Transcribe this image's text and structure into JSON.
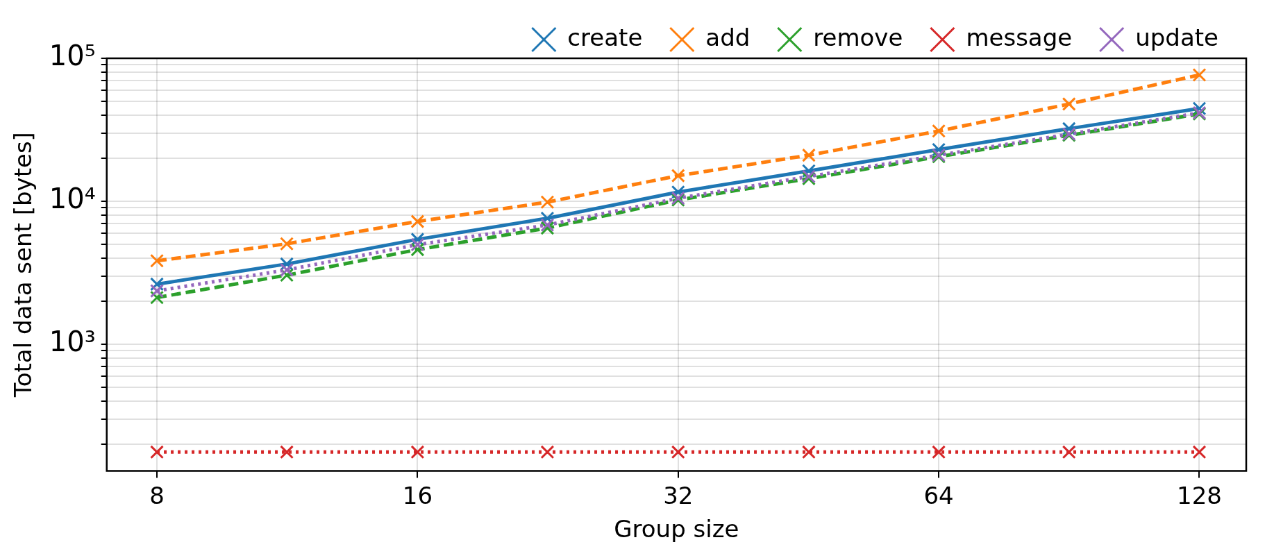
{
  "chart_data": {
    "type": "line",
    "xlabel": "Group size",
    "ylabel": "Total data sent [bytes]",
    "x": [
      8,
      11.3,
      16,
      22.6,
      32,
      45.3,
      64,
      90.5,
      128
    ],
    "series": [
      {
        "name": "create",
        "color": "#1f77b4",
        "line_style": "solid",
        "values": [
          2630,
          3640,
          5410,
          7600,
          11600,
          16300,
          23000,
          32200,
          44600
        ]
      },
      {
        "name": "add",
        "color": "#ff7f0e",
        "line_style": "dashed",
        "values": [
          3830,
          5040,
          7220,
          9860,
          15100,
          21000,
          31000,
          47900,
          76500
        ]
      },
      {
        "name": "remove",
        "color": "#2ca02c",
        "line_style": "dashed",
        "values": [
          2120,
          3040,
          4590,
          6490,
          10200,
          14400,
          20500,
          28900,
          40800
        ]
      },
      {
        "name": "message",
        "color": "#d62728",
        "line_style": "dotted",
        "values": [
          176,
          176,
          176,
          176,
          176,
          176,
          176,
          176,
          176
        ]
      },
      {
        "name": "update",
        "color": "#9467bd",
        "line_style": "dotted",
        "values": [
          2360,
          3310,
          4970,
          6820,
          10500,
          14900,
          21000,
          29500,
          41500
        ]
      }
    ],
    "log": "xy",
    "xlim": [
      7,
      145
    ],
    "ylim": [
      130,
      100000
    ],
    "xticks": [
      8,
      16,
      32,
      64,
      128
    ],
    "yticks": [
      {
        "value": 200,
        "label": null
      },
      {
        "value": 300,
        "label": null
      },
      {
        "value": 400,
        "label": null
      },
      {
        "value": 500,
        "label": null
      },
      {
        "value": 600,
        "label": null
      },
      {
        "value": 700,
        "label": null
      },
      {
        "value": 800,
        "label": null
      },
      {
        "value": 900,
        "label": null
      },
      {
        "value": 1000,
        "label": "10³"
      },
      {
        "value": 2000,
        "label": null
      },
      {
        "value": 3000,
        "label": null
      },
      {
        "value": 4000,
        "label": null
      },
      {
        "value": 5000,
        "label": null
      },
      {
        "value": 6000,
        "label": null
      },
      {
        "value": 7000,
        "label": null
      },
      {
        "value": 8000,
        "label": null
      },
      {
        "value": 9000,
        "label": null
      },
      {
        "value": 10000,
        "label": "10⁴"
      },
      {
        "value": 20000,
        "label": null
      },
      {
        "value": 30000,
        "label": null
      },
      {
        "value": 40000,
        "label": null
      },
      {
        "value": 50000,
        "label": null
      },
      {
        "value": 60000,
        "label": null
      },
      {
        "value": 70000,
        "label": null
      },
      {
        "value": 80000,
        "label": null
      },
      {
        "value": 90000,
        "label": null
      },
      {
        "value": 100000,
        "label": "10⁵"
      }
    ],
    "grid": true,
    "legend": "top",
    "marker": "cross"
  }
}
